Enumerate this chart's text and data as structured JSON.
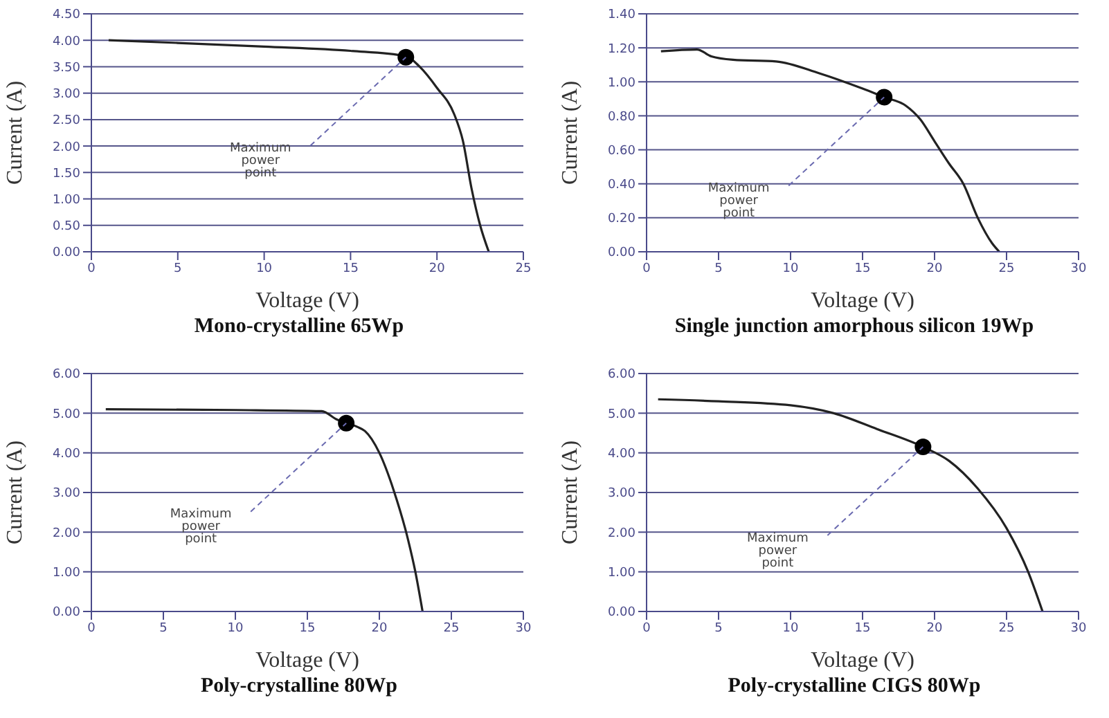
{
  "chart_data": [
    {
      "type": "line",
      "title": "Mono-crystalline 65Wp",
      "xlabel": "Voltage (V)",
      "ylabel": "Current (A)",
      "grid": "y",
      "xlim": [
        0,
        25
      ],
      "xticks": [
        0,
        5,
        10,
        15,
        20,
        25
      ],
      "ylim": [
        0,
        4.5
      ],
      "yticks": [
        {
          "value": 0,
          "label": "0.00"
        },
        {
          "value": 0.5,
          "label": "0.50"
        },
        {
          "value": 1,
          "label": "1.00"
        },
        {
          "value": 1.5,
          "label": "1.50"
        },
        {
          "value": 2,
          "label": "2.00"
        },
        {
          "value": 2.5,
          "label": "2.50"
        },
        {
          "value": 3,
          "label": "3.00"
        },
        {
          "value": 3.5,
          "label": "3.50"
        },
        {
          "value": 4,
          "label": "4.00"
        },
        {
          "value": 4.5,
          "label": "4.50"
        }
      ],
      "series": [
        {
          "color": "#222222",
          "x": [
            1,
            5,
            10,
            15,
            18.2,
            19,
            20,
            21,
            21.5,
            22,
            22.5,
            23
          ],
          "values": [
            4.0,
            3.95,
            3.88,
            3.8,
            3.7,
            3.5,
            3.1,
            2.6,
            2.1,
            1.2,
            0.5,
            0
          ]
        },
        {
          "type": "scatter",
          "color": "#000000",
          "x": [
            18.2
          ],
          "values": [
            3.68
          ]
        }
      ],
      "annotations": [
        "Maximum power point"
      ]
    },
    {
      "type": "line",
      "title": "Single junction amorphous silicon 19Wp",
      "xlabel": "Voltage (V)",
      "ylabel": "Current (A)",
      "grid": "y",
      "xlim": [
        0,
        30
      ],
      "xticks": [
        0,
        5,
        10,
        15,
        20,
        25,
        30
      ],
      "ylim": [
        0,
        1.4
      ],
      "yticks": [
        {
          "value": 0,
          "label": "0.00"
        },
        {
          "value": 0.2,
          "label": "0.20"
        },
        {
          "value": 0.4,
          "label": "0.40"
        },
        {
          "value": 0.6,
          "label": "0.60"
        },
        {
          "value": 0.8,
          "label": "0.80"
        },
        {
          "value": 1,
          "label": "1.00"
        },
        {
          "value": 1.2,
          "label": "1.20"
        },
        {
          "value": 1.4,
          "label": "1.40"
        }
      ],
      "series": [
        {
          "color": "#222222",
          "x": [
            1,
            3.5,
            4.5,
            6,
            9,
            12,
            15,
            16.5,
            18,
            19,
            20,
            21,
            22,
            23,
            24,
            24.5
          ],
          "values": [
            1.18,
            1.19,
            1.15,
            1.13,
            1.12,
            1.05,
            0.96,
            0.91,
            0.86,
            0.78,
            0.65,
            0.52,
            0.4,
            0.2,
            0.05,
            0
          ]
        },
        {
          "type": "scatter",
          "color": "#000000",
          "x": [
            16.5
          ],
          "values": [
            0.91
          ]
        }
      ],
      "annotations": [
        "Maximum power point"
      ]
    },
    {
      "type": "line",
      "title": "Poly-crystalline 80Wp",
      "xlabel": "Voltage (V)",
      "ylabel": "Current (A)",
      "grid": "y",
      "xlim": [
        0,
        30
      ],
      "xticks": [
        0,
        5,
        10,
        15,
        20,
        25,
        30
      ],
      "ylim": [
        0,
        6
      ],
      "yticks": [
        {
          "value": 0,
          "label": "0.00"
        },
        {
          "value": 1,
          "label": "1.00"
        },
        {
          "value": 2,
          "label": "2.00"
        },
        {
          "value": 3,
          "label": "3.00"
        },
        {
          "value": 4,
          "label": "4.00"
        },
        {
          "value": 5,
          "label": "5.00"
        },
        {
          "value": 6,
          "label": "6.00"
        }
      ],
      "series": [
        {
          "color": "#222222",
          "x": [
            1,
            10,
            16,
            17,
            17.7,
            18.5,
            19,
            20,
            21,
            22,
            22.5,
            23
          ],
          "values": [
            5.1,
            5.08,
            5.05,
            4.85,
            4.75,
            4.65,
            4.55,
            4.0,
            3.05,
            1.8,
            1.0,
            0
          ]
        },
        {
          "type": "scatter",
          "color": "#000000",
          "x": [
            17.7
          ],
          "values": [
            4.75
          ]
        }
      ],
      "annotations": [
        "Maximum power point"
      ]
    },
    {
      "type": "line",
      "title": "Poly-crystalline CIGS 80Wp",
      "xlabel": "Voltage (V)",
      "ylabel": "Current (A)",
      "grid": "y",
      "xlim": [
        0,
        30
      ],
      "xticks": [
        0,
        5,
        10,
        15,
        20,
        25,
        30
      ],
      "ylim": [
        0,
        6
      ],
      "yticks": [
        {
          "value": 0,
          "label": "0.00"
        },
        {
          "value": 1,
          "label": "1.00"
        },
        {
          "value": 2,
          "label": "2.00"
        },
        {
          "value": 3,
          "label": "3.00"
        },
        {
          "value": 4,
          "label": "4.00"
        },
        {
          "value": 5,
          "label": "5.00"
        },
        {
          "value": 6,
          "label": "6.00"
        }
      ],
      "series": [
        {
          "color": "#222222",
          "x": [
            0.8,
            5,
            10,
            13,
            16,
            19.2,
            21,
            23,
            25,
            26.5,
            27.5
          ],
          "values": [
            5.35,
            5.3,
            5.2,
            5.0,
            4.6,
            4.15,
            3.8,
            3.1,
            2.1,
            1.0,
            0
          ]
        },
        {
          "type": "scatter",
          "color": "#000000",
          "x": [
            19.2
          ],
          "values": [
            4.15
          ]
        }
      ],
      "annotations": [
        "Maximum power point"
      ]
    }
  ]
}
